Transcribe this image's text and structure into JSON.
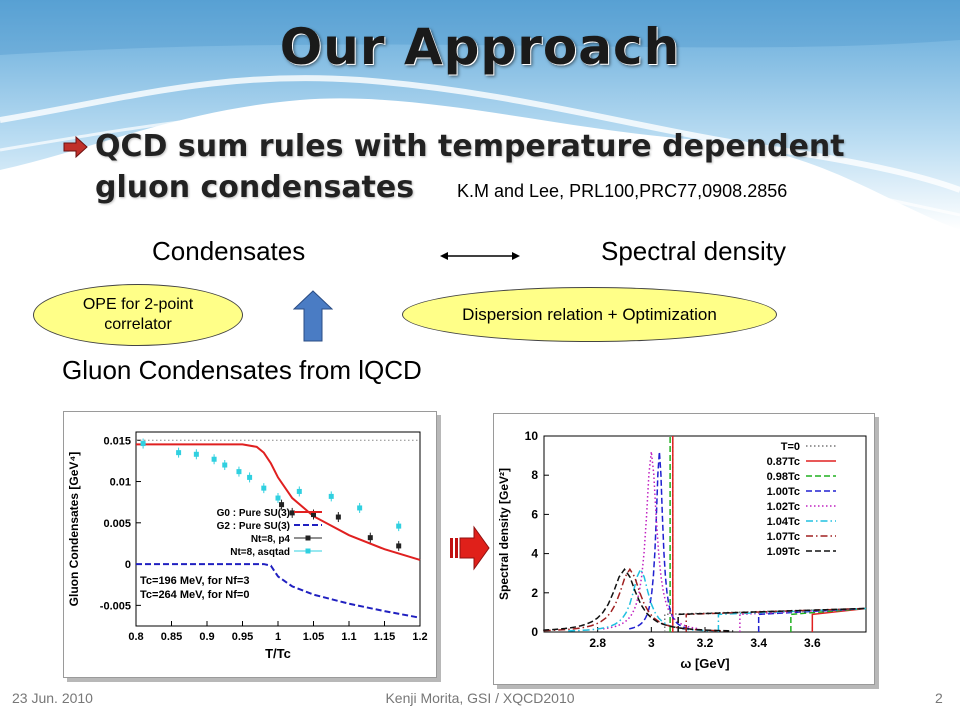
{
  "title": "Our Approach",
  "bullet": {
    "line1": "QCD sum rules with temperature dependent",
    "line2": "gluon condensates",
    "reference": "K.M and Lee, PRL100,PRC77,0908.2856"
  },
  "labels": {
    "condensates": "Condensates",
    "spectral_density": "Spectral density",
    "ope_line1": "OPE for 2-point",
    "ope_line2": "correlator",
    "dispersion": "Dispersion relation + Optimization",
    "gluon_from_lqcd": "Gluon Condensates from lQCD"
  },
  "colors": {
    "ellipse_fill": "#ffff88",
    "up_arrow": "#4a7cc4",
    "bullet_arrow": "#c0302a",
    "flow_arrow": "#e0201a"
  },
  "footer": {
    "date": "23 Jun. 2010",
    "center": "Kenji Morita, GSI / XQCD2010",
    "page": "2"
  },
  "chart_data": [
    {
      "type": "line",
      "xlabel": "T/Tc",
      "ylabel": "Gluon Condensates [GeV⁴]",
      "xlim": [
        0.8,
        1.2
      ],
      "ylim": [
        -0.0075,
        0.016
      ],
      "xticks": [
        0.8,
        0.85,
        0.9,
        0.95,
        1,
        1.05,
        1.1,
        1.15,
        1.2
      ],
      "xtick_labels": [
        "0.8",
        "0.85",
        "0.9",
        "0.95",
        "1",
        "1.05",
        "1.1",
        "1.15",
        "1.2"
      ],
      "yticks": [
        -0.005,
        0,
        0.005,
        0.01,
        0.015
      ],
      "ytick_labels": [
        "-0.005",
        "0",
        "0.005",
        "0.01",
        "0.015"
      ],
      "legend_position": "center-right",
      "series": [
        {
          "name": "G0 : Pure SU(3)",
          "style": "line",
          "color": "#e02020",
          "x": [
            0.8,
            0.95,
            0.97,
            0.98,
            0.99,
            1.0,
            1.02,
            1.05,
            1.1,
            1.15,
            1.2
          ],
          "y": [
            0.0145,
            0.0145,
            0.0142,
            0.0135,
            0.0122,
            0.0105,
            0.008,
            0.0058,
            0.0035,
            0.0018,
            0.0005
          ]
        },
        {
          "name": "G2 : Pure SU(3)",
          "style": "dashed",
          "color": "#2020c0",
          "x": [
            0.8,
            0.98,
            0.99,
            1.0,
            1.02,
            1.05,
            1.1,
            1.15,
            1.2
          ],
          "y": [
            0,
            0,
            -0.0002,
            -0.0015,
            -0.0027,
            -0.0037,
            -0.0048,
            -0.0057,
            -0.0065
          ]
        },
        {
          "name": "Nt=8, p4",
          "style": "points",
          "color": "#222222",
          "x": [
            1.005,
            1.02,
            1.05,
            1.085,
            1.13,
            1.17
          ],
          "y": [
            0.0072,
            0.0062,
            0.006,
            0.0057,
            0.0032,
            0.0022
          ]
        },
        {
          "name": "Nt=8, asqtad",
          "style": "points",
          "color": "#30d0e0",
          "x": [
            0.81,
            0.86,
            0.885,
            0.91,
            0.925,
            0.945,
            0.96,
            0.98,
            1.0,
            1.03,
            1.075,
            1.115,
            1.17
          ],
          "y": [
            0.0146,
            0.0135,
            0.0133,
            0.0127,
            0.012,
            0.0112,
            0.0105,
            0.0092,
            0.008,
            0.0088,
            0.0082,
            0.0068,
            0.0046
          ]
        }
      ],
      "reference_line": {
        "y": 0.015,
        "style": "dotted"
      },
      "annotations": [
        "Tc=196 MeV, for Nf=3",
        "Tc=264 MeV, for Nf=0"
      ]
    },
    {
      "type": "line",
      "xlabel": "ω [GeV]",
      "ylabel": "Spectral density [GeV²]",
      "xlim": [
        2.6,
        3.8
      ],
      "ylim": [
        0,
        10
      ],
      "xticks": [
        2.8,
        3,
        3.2,
        3.4,
        3.6
      ],
      "xtick_labels": [
        "2.8",
        "3",
        "3.2",
        "3.4",
        "3.6"
      ],
      "yticks": [
        0,
        2,
        4,
        6,
        8,
        10
      ],
      "ytick_labels": [
        "0",
        "2",
        "4",
        "6",
        "8",
        "10"
      ],
      "legend_position": "top-right",
      "series": [
        {
          "name": "T=0",
          "color": "#777777",
          "style": "dotted",
          "peak": 3.08,
          "threshold": 3.05
        },
        {
          "name": "0.87Tc",
          "color": "#e02020",
          "style": "solid",
          "peak": 3.08,
          "threshold": 3.6
        },
        {
          "name": "0.98Tc",
          "color": "#20b020",
          "style": "dashed",
          "peak": 3.07,
          "threshold": 3.52
        },
        {
          "name": "1.00Tc",
          "color": "#2020d0",
          "style": "dashed",
          "peak": 3.03,
          "threshold": 3.4
        },
        {
          "name": "1.02Tc",
          "color": "#c020c0",
          "style": "dotted",
          "peak": 3.0,
          "threshold": 3.33
        },
        {
          "name": "1.04Tc",
          "color": "#20c0e0",
          "style": "dashdot",
          "peak": 2.96,
          "threshold": 3.25
        },
        {
          "name": "1.07Tc",
          "color": "#a02020",
          "style": "dashdot",
          "peak": 2.92,
          "threshold": 3.13
        },
        {
          "name": "1.09Tc",
          "color": "#111111",
          "style": "dashed",
          "peak": 2.9,
          "threshold": 3.1
        }
      ]
    }
  ]
}
